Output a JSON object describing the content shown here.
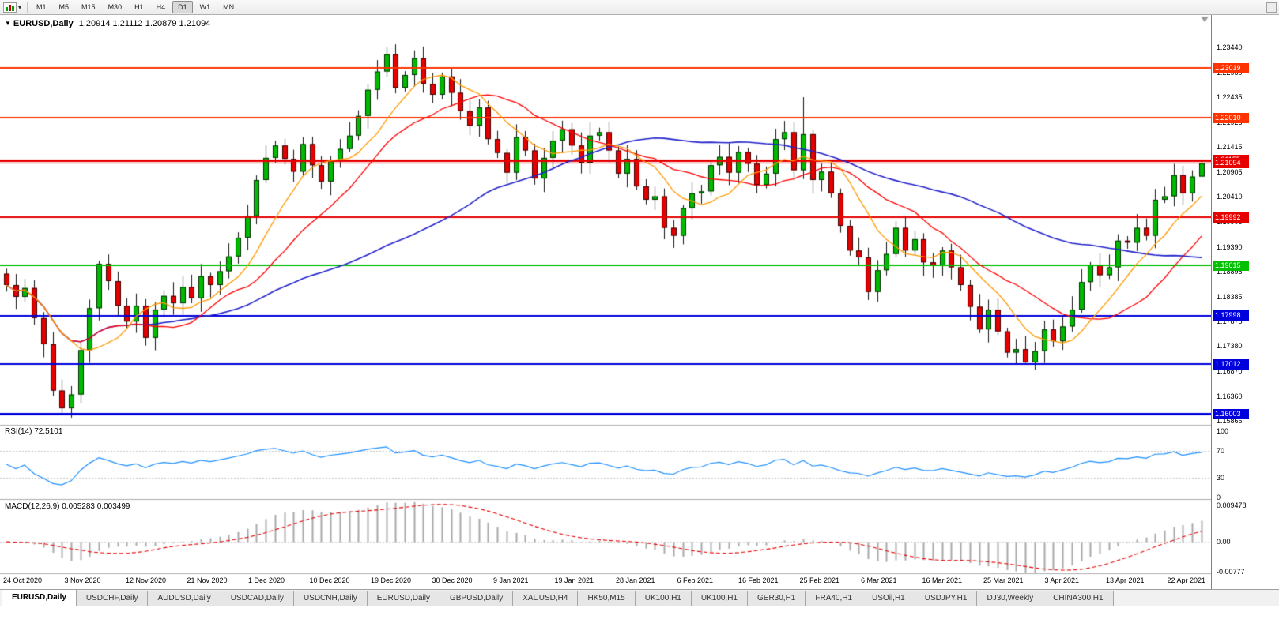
{
  "toolbar": {
    "chart_type_icon": "candlestick-chart-icon",
    "timeframes": [
      "M1",
      "M5",
      "M15",
      "M30",
      "H1",
      "H4",
      "D1",
      "W1",
      "MN"
    ],
    "active_timeframe": "D1"
  },
  "chart": {
    "title": "EURUSD,Daily",
    "ohlc_text": "1.20914 1.21112 1.20879 1.21094",
    "open": "1.20914",
    "high": "1.21112",
    "low": "1.20879",
    "close": "1.21094"
  },
  "price_axis": {
    "ticks": [
      "1.23440",
      "1.22930",
      "1.22435",
      "1.21925",
      "1.21415",
      "1.20905",
      "1.20410",
      "1.19905",
      "1.19390",
      "1.18895",
      "1.18385",
      "1.17875",
      "1.17380",
      "1.16870",
      "1.16360",
      "1.15865"
    ]
  },
  "levels": [
    {
      "label": "1.23019",
      "price": 1.23019,
      "color": "#ff3300",
      "width": 2
    },
    {
      "label": "1.22010",
      "price": 1.2201,
      "color": "#ff3300",
      "width": 2
    },
    {
      "label": "1.21155",
      "price": 1.21155,
      "color": "#e60000",
      "width": 3
    },
    {
      "label": "1.19992",
      "price": 1.19992,
      "color": "#e60000",
      "width": 2
    },
    {
      "label": "1.19015",
      "price": 1.19015,
      "color": "#00c000",
      "width": 2
    },
    {
      "label": "1.17998",
      "price": 1.17998,
      "color": "#0000dd",
      "width": 2
    },
    {
      "label": "1.17012",
      "price": 1.17012,
      "color": "#0000dd",
      "width": 2
    },
    {
      "label": "1.16003",
      "price": 1.16003,
      "color": "#0000dd",
      "width": 3
    }
  ],
  "current_price": {
    "label": "1.21094",
    "price": 1.21094,
    "color": "#e60000"
  },
  "rsi": {
    "label": "RSI(14) 72.5101",
    "value": 72.5101,
    "color": "#1e90ff",
    "axis": [
      {
        "text": "100",
        "value": 100
      },
      {
        "text": "70",
        "value": 70
      },
      {
        "text": "30",
        "value": 30
      },
      {
        "text": "0",
        "value": 0
      }
    ]
  },
  "macd": {
    "label": "MACD(12,26,9) 0.005283 0.003499",
    "main_value": 0.005283,
    "signal_value": 0.003499,
    "histogram_color": "#a8a8a8",
    "signal_color": "#e60000",
    "axis": [
      {
        "text": "0.009478",
        "value": 0.009478
      },
      {
        "text": "0.00",
        "value": 0
      },
      {
        "text": "-0.00777",
        "value": -0.00777
      }
    ]
  },
  "chart_data": {
    "type": "candlestick",
    "symbol": "EURUSD",
    "timeframe": "Daily",
    "x_labels": [
      "24 Oct 2020",
      "3 Nov 2020",
      "12 Nov 2020",
      "21 Nov 2020",
      "1 Dec 2020",
      "10 Dec 2020",
      "19 Dec 2020",
      "30 Dec 2020",
      "9 Jan 2021",
      "19 Jan 2021",
      "28 Jan 2021",
      "6 Feb 2021",
      "16 Feb 2021",
      "25 Feb 2021",
      "6 Mar 2021",
      "16 Mar 2021",
      "25 Mar 2021",
      "3 Apr 2021",
      "13 Apr 2021",
      "22 Apr 2021"
    ],
    "first_open": 1.1885,
    "closes": [
      1.1862,
      1.1838,
      1.1856,
      1.1795,
      1.1742,
      1.1648,
      1.1612,
      1.164,
      1.173,
      1.1815,
      1.1905,
      1.187,
      1.182,
      1.1788,
      1.182,
      1.1755,
      1.1812,
      1.184,
      1.1825,
      1.1858,
      1.1835,
      1.188,
      1.1862,
      1.189,
      1.192,
      1.1958,
      1.2002,
      1.2075,
      1.212,
      1.2145,
      1.2118,
      1.2092,
      1.2148,
      1.2105,
      1.2072,
      1.2115,
      1.2138,
      1.2165,
      1.2205,
      1.2258,
      1.2295,
      1.233,
      1.2262,
      1.2288,
      1.2322,
      1.227,
      1.2248,
      1.2285,
      1.2252,
      1.2215,
      1.2185,
      1.2222,
      1.2158,
      1.213,
      1.209,
      1.2162,
      1.2135,
      1.2078,
      1.212,
      1.2155,
      1.2178,
      1.2145,
      1.211,
      1.2165,
      1.2172,
      1.2135,
      1.2088,
      1.2118,
      1.2062,
      1.2035,
      1.2042,
      1.1978,
      1.1962,
      1.2018,
      1.2048,
      1.2052,
      1.2105,
      1.2122,
      1.209,
      1.2132,
      1.2108,
      1.2065,
      1.2088,
      1.2158,
      1.2172,
      1.2095,
      1.2168,
      1.2075,
      1.2092,
      1.2048,
      1.1982,
      1.1932,
      1.1918,
      1.1848,
      1.1892,
      1.1925,
      1.1978,
      1.1932,
      1.1955,
      1.1908,
      1.1902,
      1.1932,
      1.1898,
      1.1862,
      1.1818,
      1.1772,
      1.1812,
      1.1768,
      1.1725,
      1.1732,
      1.1705,
      1.1728,
      1.1772,
      1.1748,
      1.1778,
      1.1812,
      1.1868,
      1.1902,
      1.1882,
      1.1898,
      1.1952,
      1.1948,
      1.1978,
      1.1962,
      1.2035,
      1.2042,
      1.2085,
      1.2048,
      1.2082,
      1.21094
    ],
    "overrides": {
      "6": {
        "low": 1.1603
      },
      "41": {
        "high": 1.2344
      },
      "44": {
        "high": 1.2338
      },
      "86": {
        "high": 1.2243
      },
      "110": {
        "low": 1.1704
      },
      "129": {
        "high": 1.21112,
        "low": 1.20879
      }
    },
    "ma_periods": {
      "fast": 8,
      "mid": 16,
      "slow": 45
    },
    "colors": {
      "bull": "#00bb00",
      "bear": "#e60000",
      "wick": "#141414",
      "ma_fast": "#ff9900",
      "ma_mid": "#ff0000",
      "ma_slow": "#2222cc",
      "background": "#ffffff"
    }
  },
  "bottom_tabs": {
    "active_index": 0,
    "tabs": [
      "EURUSD,Daily",
      "USDCHF,Daily",
      "AUDUSD,Daily",
      "USDCAD,Daily",
      "USDCNH,Daily",
      "EURUSD,Daily",
      "GBPUSD,Daily",
      "XAUUSD,H4",
      "HK50,M15",
      "UK100,H1",
      "UK100,H1",
      "GER30,H1",
      "FRA40,H1",
      "USOil,H1",
      "USDJPY,H1",
      "DJ30,Weekly",
      "CHINA300,H1"
    ]
  }
}
